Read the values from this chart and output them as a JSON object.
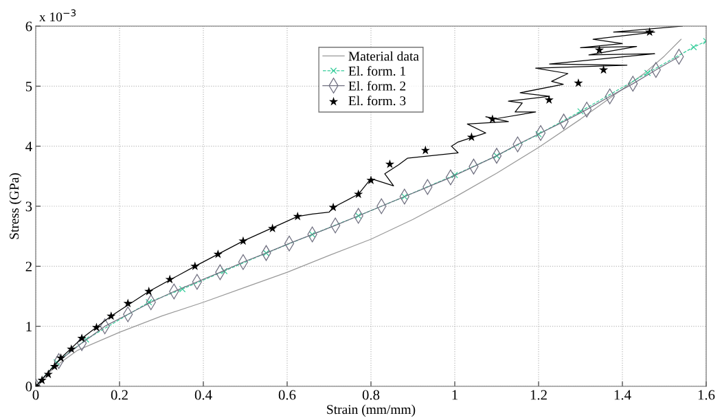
{
  "chart_data": {
    "type": "line",
    "xlabel": "Strain (mm/mm)",
    "ylabel": "Stress (GPa)",
    "annotations": [
      "x 10$^{−3}$"
    ],
    "xlim": [
      0,
      1.6
    ],
    "ylim": [
      0,
      6
    ],
    "xticks": [
      0,
      0.2,
      0.4,
      0.6,
      0.8,
      1,
      1.2,
      1.4,
      1.6
    ],
    "yticks": [
      0,
      1,
      2,
      3,
      4,
      5,
      6
    ],
    "grid": true,
    "legend": "top",
    "series": [
      {
        "name": "Material data",
        "color": "#999999",
        "marker": "none",
        "line_style": "solid",
        "x": [
          0,
          0.05,
          0.1,
          0.2,
          0.3,
          0.4,
          0.5,
          0.6,
          0.7,
          0.8,
          0.9,
          1.0,
          1.1,
          1.2,
          1.3,
          1.4,
          1.45,
          1.5,
          1.54
        ],
        "values": [
          0,
          0.35,
          0.6,
          0.9,
          1.17,
          1.4,
          1.65,
          1.9,
          2.18,
          2.45,
          2.78,
          3.15,
          3.55,
          3.98,
          4.45,
          4.95,
          5.2,
          5.5,
          5.78
        ]
      },
      {
        "name": "El. form. 1",
        "color": "#33cc99",
        "marker": "cross",
        "line_style": "dashed",
        "x": [
          0,
          0.05,
          0.12,
          0.27,
          0.35,
          0.45,
          0.55,
          0.66,
          0.77,
          0.88,
          1.0,
          1.1,
          1.2,
          1.3,
          1.46,
          1.57,
          1.6
        ],
        "values": [
          0,
          0.4,
          0.78,
          1.4,
          1.62,
          1.92,
          2.22,
          2.53,
          2.84,
          3.16,
          3.52,
          3.84,
          4.2,
          4.58,
          5.22,
          5.65,
          5.75
        ]
      },
      {
        "name": "El. form. 2",
        "color": "#707080",
        "marker": "diamond",
        "line_style": "solid",
        "x": [
          0,
          0.055,
          0.11,
          0.165,
          0.22,
          0.275,
          0.33,
          0.385,
          0.44,
          0.495,
          0.55,
          0.605,
          0.66,
          0.715,
          0.77,
          0.825,
          0.88,
          0.935,
          0.99,
          1.045,
          1.1,
          1.15,
          1.205,
          1.26,
          1.315,
          1.37,
          1.425,
          1.48,
          1.535
        ],
        "values": [
          0,
          0.42,
          0.72,
          1.0,
          1.2,
          1.4,
          1.58,
          1.74,
          1.9,
          2.07,
          2.22,
          2.38,
          2.53,
          2.68,
          2.84,
          3.0,
          3.16,
          3.32,
          3.48,
          3.66,
          3.84,
          4.03,
          4.22,
          4.41,
          4.61,
          4.83,
          5.04,
          5.27,
          5.49
        ]
      },
      {
        "color": "#000000",
        "marker": "none",
        "line_style": "solid",
        "x": [
          0,
          0.06,
          0.11,
          0.18,
          0.27,
          0.38,
          0.495,
          0.625,
          0.66,
          0.7,
          0.71,
          0.77,
          0.8,
          0.854,
          0.833,
          0.866,
          0.887,
          1.008,
          0.992,
          1.008,
          1.074,
          1.03,
          1.128,
          1.074,
          1.1,
          1.193,
          1.144,
          1.161,
          1.128,
          1.226,
          1.156,
          1.259,
          1.231,
          1.27,
          1.193,
          1.411,
          1.226,
          1.477,
          1.32,
          1.434,
          1.3,
          1.4,
          1.33,
          1.477,
          1.379,
          1.543
        ],
        "values": [
          0,
          0.47,
          0.8,
          1.17,
          1.58,
          2.0,
          2.42,
          2.83,
          2.87,
          2.9,
          2.98,
          3.2,
          3.46,
          3.34,
          3.54,
          3.69,
          3.8,
          3.89,
          4.0,
          4.07,
          4.22,
          4.37,
          4.41,
          4.49,
          4.46,
          4.57,
          4.57,
          4.72,
          4.75,
          4.83,
          4.89,
          5.03,
          5.08,
          5.21,
          5.3,
          5.35,
          5.37,
          5.54,
          5.52,
          5.66,
          5.64,
          5.71,
          5.78,
          5.9,
          5.9,
          6.0
        ]
      },
      {
        "name": "El. form. 3",
        "type": "scatter",
        "color": "#000000",
        "marker": "star",
        "x": [
          0,
          0.015,
          0.03,
          0.045,
          0.06,
          0.085,
          0.11,
          0.145,
          0.18,
          0.22,
          0.27,
          0.32,
          0.38,
          0.435,
          0.495,
          0.565,
          0.625,
          0.71,
          0.77,
          0.8,
          0.845,
          0.93,
          1.04,
          1.09,
          1.225,
          1.295,
          1.345,
          1.355,
          1.465
        ],
        "values": [
          0,
          0.1,
          0.2,
          0.33,
          0.47,
          0.62,
          0.8,
          0.98,
          1.17,
          1.38,
          1.58,
          1.78,
          2.0,
          2.2,
          2.42,
          2.63,
          2.83,
          2.98,
          3.2,
          3.43,
          3.7,
          3.93,
          4.15,
          4.45,
          4.77,
          5.05,
          5.6,
          5.27,
          5.9
        ]
      }
    ]
  }
}
